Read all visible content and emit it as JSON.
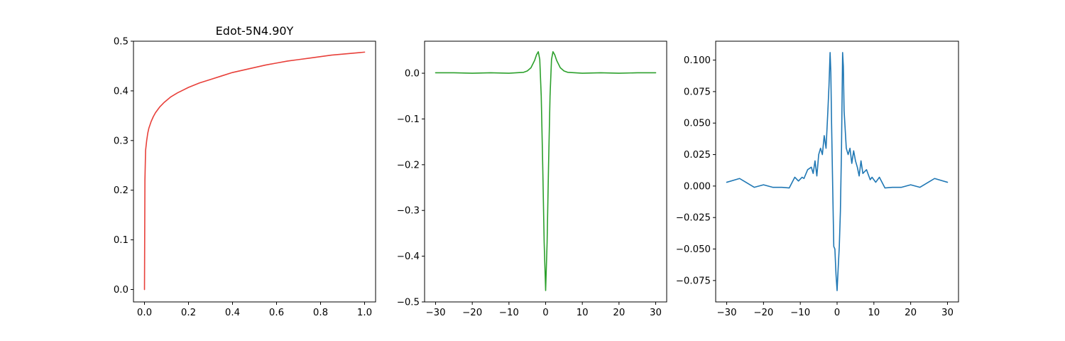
{
  "chart_data": [
    {
      "type": "line",
      "title": "Edot-5N4.90Y",
      "xlabel": "",
      "ylabel": "",
      "xlim": [
        -0.05,
        1.05
      ],
      "ylim": [
        -0.025,
        0.5
      ],
      "xticks": [
        0.0,
        0.2,
        0.4,
        0.6,
        0.8,
        1.0
      ],
      "xtick_labels": [
        "0.0",
        "0.2",
        "0.4",
        "0.6",
        "0.8",
        "1.0"
      ],
      "yticks": [
        0.0,
        0.1,
        0.2,
        0.3,
        0.4,
        0.5
      ],
      "ytick_labels": [
        "0.0",
        "0.1",
        "0.2",
        "0.3",
        "0.4",
        "0.5"
      ],
      "grid": false,
      "series": [
        {
          "name": "curve",
          "color": "#e8403a",
          "x": [
            0.0,
            0.002,
            0.005,
            0.01,
            0.015,
            0.02,
            0.03,
            0.04,
            0.05,
            0.07,
            0.09,
            0.12,
            0.15,
            0.2,
            0.25,
            0.3,
            0.35,
            0.4,
            0.45,
            0.5,
            0.55,
            0.6,
            0.65,
            0.7,
            0.75,
            0.8,
            0.85,
            0.9,
            0.95,
            1.0
          ],
          "y": [
            0.0,
            0.22,
            0.28,
            0.3,
            0.315,
            0.325,
            0.338,
            0.348,
            0.356,
            0.368,
            0.377,
            0.388,
            0.396,
            0.407,
            0.416,
            0.423,
            0.43,
            0.437,
            0.442,
            0.447,
            0.452,
            0.456,
            0.46,
            0.463,
            0.466,
            0.469,
            0.472,
            0.474,
            0.476,
            0.478
          ]
        }
      ]
    },
    {
      "type": "line",
      "title": "",
      "xlabel": "",
      "ylabel": "",
      "xlim": [
        -33,
        33
      ],
      "ylim": [
        -0.5,
        0.07
      ],
      "xticks": [
        -30,
        -20,
        -10,
        0,
        10,
        20,
        30
      ],
      "xtick_labels": [
        "−30",
        "−20",
        "−10",
        "0",
        "10",
        "20",
        "30"
      ],
      "yticks": [
        0.0,
        -0.1,
        -0.2,
        -0.3,
        -0.4,
        -0.5
      ],
      "ytick_labels": [
        "0.0",
        "−0.1",
        "−0.2",
        "−0.3",
        "−0.4",
        "−0.5"
      ],
      "grid": false,
      "series": [
        {
          "name": "curve",
          "color": "#2ca02c",
          "x": [
            -30,
            -25,
            -20,
            -15,
            -10,
            -8,
            -6,
            -5,
            -4,
            -3,
            -2.5,
            -2,
            -1.6,
            -1.2,
            -0.8,
            -0.4,
            0,
            0.4,
            0.8,
            1.2,
            1.6,
            2,
            2.5,
            3,
            4,
            5,
            6,
            8,
            10,
            15,
            20,
            25,
            30
          ],
          "y": [
            0.001,
            0.001,
            0.0,
            0.001,
            0.0,
            0.001,
            0.002,
            0.005,
            0.012,
            0.028,
            0.04,
            0.047,
            0.03,
            -0.05,
            -0.2,
            -0.37,
            -0.475,
            -0.37,
            -0.2,
            -0.05,
            0.03,
            0.047,
            0.04,
            0.028,
            0.012,
            0.005,
            0.002,
            0.001,
            0.0,
            0.001,
            0.0,
            0.001,
            0.001
          ]
        }
      ]
    },
    {
      "type": "line",
      "title": "",
      "xlabel": "",
      "ylabel": "",
      "xlim": [
        -33,
        33
      ],
      "ylim": [
        -0.092,
        0.115
      ],
      "xticks": [
        -30,
        -20,
        -10,
        0,
        10,
        20,
        30
      ],
      "xtick_labels": [
        "−30",
        "−20",
        "−10",
        "0",
        "10",
        "20",
        "30"
      ],
      "yticks": [
        0.1,
        0.075,
        0.05,
        0.025,
        0.0,
        -0.025,
        -0.05,
        -0.075
      ],
      "ytick_labels": [
        "0.100",
        "0.075",
        "0.050",
        "0.025",
        "0.000",
        "−0.025",
        "−0.050",
        "−0.075"
      ],
      "grid": false,
      "series": [
        {
          "name": "curve",
          "color": "#1f77b4",
          "x": [
            -30,
            -26.5,
            -22.5,
            -20,
            -17.5,
            -15,
            -13,
            -11.5,
            -10.5,
            -9.5,
            -9,
            -8,
            -7,
            -6.5,
            -6,
            -5.5,
            -5,
            -4.5,
            -4,
            -3.5,
            -3,
            -2.5,
            -2.2,
            -1.9,
            -1.7,
            -1.5,
            -1.2,
            -0.9,
            -0.6,
            -0.3,
            0,
            0.3,
            0.6,
            0.9,
            1.2,
            1.5,
            1.7,
            1.9,
            2.2,
            2.5,
            3,
            3.5,
            4,
            4.5,
            5,
            5.5,
            6,
            6.5,
            7,
            8,
            9,
            9.5,
            10.5,
            11.5,
            13,
            15,
            17.5,
            20,
            22.5,
            26.5,
            30
          ],
          "y": [
            0.003,
            0.006,
            -0.001,
            0.001,
            -0.001,
            -0.001,
            -0.0015,
            0.007,
            0.004,
            0.007,
            0.006,
            0.013,
            0.015,
            0.01,
            0.02,
            0.008,
            0.025,
            0.03,
            0.025,
            0.04,
            0.03,
            0.06,
            0.08,
            0.106,
            0.09,
            0.05,
            0.0,
            -0.048,
            -0.05,
            -0.07,
            -0.083,
            -0.065,
            -0.048,
            -0.02,
            0.03,
            0.106,
            0.095,
            0.06,
            0.045,
            0.03,
            0.025,
            0.03,
            0.018,
            0.028,
            0.02,
            0.015,
            0.008,
            0.02,
            0.01,
            0.013,
            0.005,
            0.007,
            0.003,
            0.007,
            -0.0015,
            -0.001,
            -0.001,
            0.001,
            -0.001,
            0.006,
            0.003
          ]
        }
      ]
    }
  ]
}
